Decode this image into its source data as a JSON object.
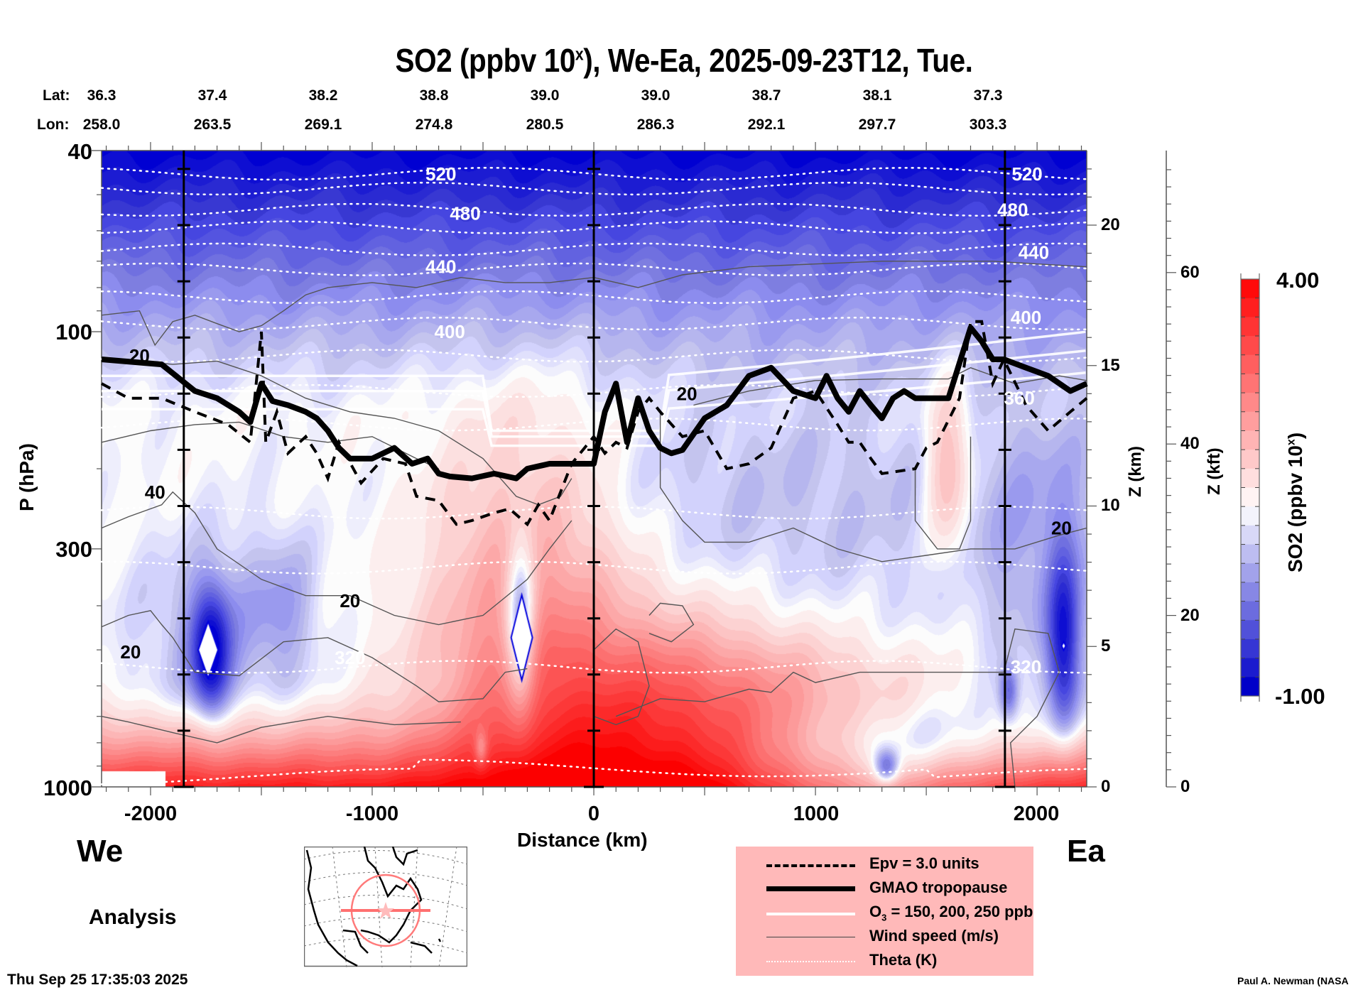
{
  "title": {
    "prefix": "SO2 (ppbv 10",
    "sup": "x",
    "suffix": "), We-Ea, 2025-09-23T12, Tue."
  },
  "latlon": {
    "lat_label": "Lat:",
    "lon_label": "Lon:",
    "lat": [
      "36.3",
      "37.4",
      "38.2",
      "38.8",
      "39.0",
      "39.0",
      "38.7",
      "38.1",
      "37.3"
    ],
    "lon": [
      "258.0",
      "263.5",
      "269.1",
      "274.8",
      "280.5",
      "286.3",
      "292.1",
      "297.7",
      "303.3"
    ]
  },
  "labels": {
    "west": "We",
    "east": "Ea",
    "analysis": "Analysis",
    "timestamp": "Thu Sep 25 17:35:03 2025",
    "credit": "Paul A. Newman (NASA"
  },
  "legend": {
    "items": [
      {
        "key": "epv",
        "text": "Epv = 3.0 units"
      },
      {
        "key": "tropopause",
        "text": "GMAO tropopause"
      },
      {
        "key": "ozone",
        "text_prefix": "O",
        "text_sub": "3",
        "text_suffix": " = 150, 200, 250 ppb"
      },
      {
        "key": "wind",
        "text": "Wind speed (m/s)"
      },
      {
        "key": "theta",
        "text": "Theta (K)"
      }
    ]
  },
  "colors": {
    "legend_bg": "#ffb9b9",
    "so2_low": "#0000cc",
    "so2_mid": "#ffffff",
    "so2_high": "#ff0000",
    "map_track": "#ff7070"
  },
  "chart_data": {
    "type": "heatmap",
    "title": "SO2 (ppbv 10^x), We-Ea, 2025-09-23T12, Tue.",
    "xlabel": "Distance (km)",
    "ylabel": "P (hPa)",
    "y2label": "Z (km)",
    "y3label": "Z (kft)",
    "colorbar_label": "SO2 (ppbv 10^x)",
    "xlim": [
      -2221,
      2224
    ],
    "ylim": [
      1000,
      40
    ],
    "y_scale": "log",
    "x_ticks": [
      -2000,
      -1000,
      0,
      1000,
      2000
    ],
    "x_tick_labels": [
      "-2000",
      "-1000",
      "0",
      "1000",
      "2000"
    ],
    "y_ticks": [
      40,
      100,
      300,
      1000
    ],
    "y_tick_labels": [
      "40",
      "100",
      "300",
      "1000"
    ],
    "z_km_ticks": [
      0,
      5,
      10,
      15,
      20
    ],
    "z_km_tick_labels": [
      "0",
      "5",
      "10",
      "15",
      "20"
    ],
    "z_kft_ticks": [
      0,
      20,
      40,
      60
    ],
    "z_kft_tick_labels": [
      "0",
      "20",
      "40",
      "60"
    ],
    "colorbar": {
      "min": -1.0,
      "max": 4.0,
      "min_label": "-1.00",
      "max_label": "4.00",
      "levels": 22
    },
    "vertical_markers_km": [
      -1850,
      0,
      1855
    ],
    "theta_labels": [
      {
        "value": "520",
        "x_km": -690,
        "p": 45
      },
      {
        "value": "480",
        "x_km": -580,
        "p": 55
      },
      {
        "value": "440",
        "x_km": -690,
        "p": 72
      },
      {
        "value": "400",
        "x_km": -650,
        "p": 100
      },
      {
        "value": "520",
        "x_km": 1955,
        "p": 45
      },
      {
        "value": "480",
        "x_km": 1890,
        "p": 54
      },
      {
        "value": "440",
        "x_km": 1985,
        "p": 67
      },
      {
        "value": "400",
        "x_km": 1950,
        "p": 93
      },
      {
        "value": "360",
        "x_km": 1920,
        "p": 140
      },
      {
        "value": "320",
        "x_km": -1100,
        "p": 520
      },
      {
        "value": "320",
        "x_km": 1950,
        "p": 545
      }
    ],
    "wind_labels": [
      {
        "value": "20",
        "x_km": -2050,
        "p": 113
      },
      {
        "value": "40",
        "x_km": -1980,
        "p": 225
      },
      {
        "value": "20",
        "x_km": -1100,
        "p": 390
      },
      {
        "value": "20",
        "x_km": -2090,
        "p": 505
      },
      {
        "value": "20",
        "x_km": 420,
        "p": 137
      },
      {
        "value": "20",
        "x_km": 2110,
        "p": 270
      }
    ],
    "tropopause_pressure": {
      "x_km": [
        -2221,
        -1950,
        -1800,
        -1700,
        -1600,
        -1550,
        -1500,
        -1450,
        -1380,
        -1300,
        -1250,
        -1200,
        -1150,
        -1100,
        -1000,
        -900,
        -820,
        -750,
        -700,
        -650,
        -550,
        -450,
        -350,
        -300,
        -200,
        -100,
        0,
        50,
        100,
        150,
        200,
        250,
        300,
        350,
        400,
        500,
        600,
        700,
        800,
        900,
        1000,
        1050,
        1100,
        1150,
        1200,
        1250,
        1300,
        1350,
        1400,
        1450,
        1500,
        1600,
        1700,
        1750,
        1800,
        1850,
        1950,
        2050,
        2150,
        2224
      ],
      "p_hpa": [
        115,
        118,
        135,
        140,
        150,
        158,
        130,
        142,
        145,
        150,
        155,
        165,
        180,
        190,
        190,
        180,
        195,
        190,
        205,
        208,
        210,
        205,
        210,
        200,
        195,
        195,
        195,
        150,
        130,
        175,
        140,
        165,
        180,
        185,
        182,
        155,
        145,
        125,
        120,
        135,
        140,
        125,
        140,
        150,
        135,
        145,
        155,
        140,
        135,
        140,
        140,
        140,
        98,
        105,
        115,
        115,
        120,
        125,
        135,
        130
      ]
    },
    "epv_3_pressure": {
      "x_km": [
        -2221,
        -2100,
        -1950,
        -1800,
        -1650,
        -1550,
        -1500,
        -1480,
        -1430,
        -1380,
        -1300,
        -1250,
        -1200,
        -1150,
        -1050,
        -950,
        -850,
        -800,
        -700,
        -620,
        -550,
        -450,
        -380,
        -300,
        -250,
        -200,
        -150,
        -100,
        0,
        50,
        100,
        150,
        200,
        250,
        300,
        400,
        500,
        600,
        700,
        800,
        900,
        1000,
        1100,
        1150,
        1200,
        1250,
        1300,
        1450,
        1500,
        1550,
        1650,
        1700,
        1750,
        1800,
        1850,
        1950,
        2050,
        2150,
        2224
      ],
      "p_hpa": [
        130,
        140,
        140,
        150,
        160,
        175,
        100,
        175,
        150,
        185,
        170,
        185,
        210,
        175,
        215,
        190,
        195,
        230,
        235,
        265,
        260,
        250,
        245,
        265,
        240,
        260,
        225,
        195,
        170,
        185,
        175,
        180,
        150,
        140,
        150,
        170,
        165,
        200,
        195,
        180,
        140,
        135,
        160,
        175,
        175,
        190,
        205,
        200,
        180,
        175,
        140,
        95,
        95,
        130,
        115,
        145,
        165,
        150,
        140
      ]
    },
    "data_summary": {
      "so2_upper_stratosphere": "strongly negative (blue) near 40-60 hPa",
      "so2_boundary_layer": "strongly positive (red) near surface 700-1000 hPa",
      "so2_mid_troposphere": "mixed, near zero to slightly negative",
      "so2_minima_spots": [
        {
          "x_km": -1750,
          "p": 500
        },
        {
          "x_km": -280,
          "p": 460
        },
        {
          "x_km": 1375,
          "p": 960
        },
        {
          "x_km": 2110,
          "p": 490
        }
      ]
    }
  }
}
